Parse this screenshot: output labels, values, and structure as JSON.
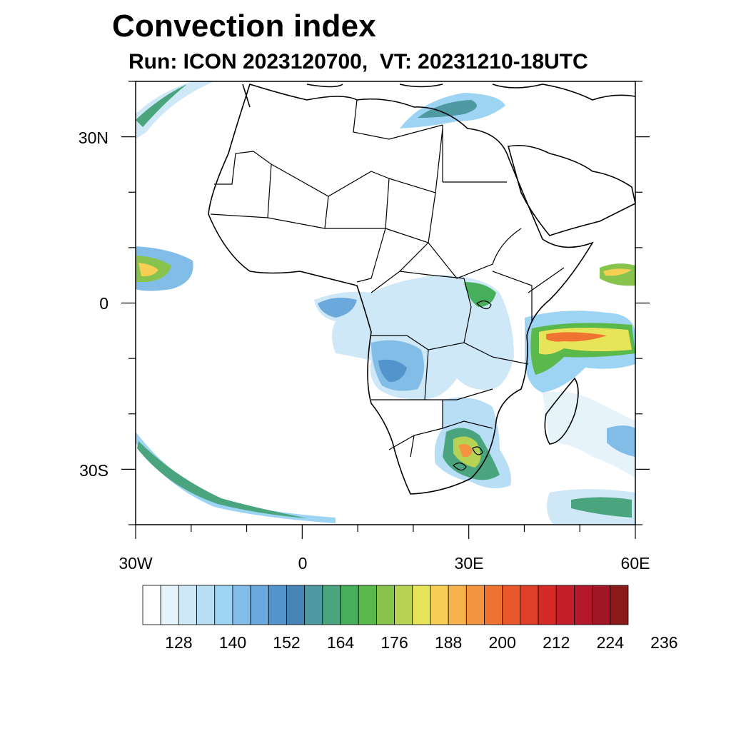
{
  "title": "Convection index",
  "subtitle": "Run: ICON 2023120700,  VT: 20231210-18UTC",
  "map": {
    "lon_range": [
      -30,
      60
    ],
    "lat_range": [
      -40,
      40
    ],
    "lat_labels": [
      "30N",
      "0",
      "30S"
    ],
    "lon_labels": [
      "30W",
      "0",
      "30E",
      "60E"
    ]
  },
  "colorbar": {
    "colors": [
      "#ffffff",
      "#e6f3fb",
      "#cfe8f7",
      "#b8def5",
      "#9dd3f3",
      "#82bde8",
      "#6ba9dd",
      "#5494cc",
      "#4785b7",
      "#4f9aa2",
      "#4aa57e",
      "#47af5c",
      "#5bb84a",
      "#87c34d",
      "#b6d354",
      "#e8e45a",
      "#f7cf55",
      "#f6b34c",
      "#f49440",
      "#ef7432",
      "#e9572a",
      "#e03e27",
      "#d42b29",
      "#c41e2a",
      "#b3182a",
      "#a21526",
      "#8b1a1a"
    ],
    "labels": [
      "128",
      "140",
      "152",
      "164",
      "176",
      "188",
      "200",
      "212",
      "224",
      "236"
    ]
  }
}
